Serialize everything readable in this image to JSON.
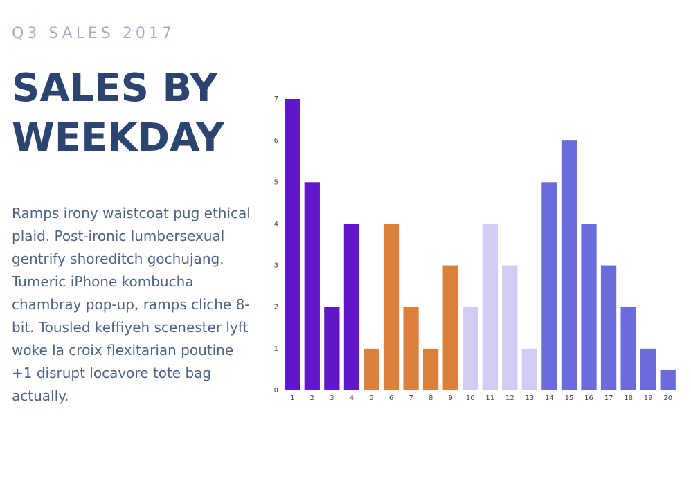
{
  "header": {
    "eyebrow": "Q3 SALES 2017",
    "headline_line1": "SALES BY",
    "headline_line2": "WEEKDAY"
  },
  "description": "Ramps irony waistcoat pug ethical plaid. Post-ironic lumbersexual gentrify shoreditch gochujang. Tumeric iPhone kombucha chambray pop-up, ramps cliche 8-bit. Tousled keffiyeh scenester lyft woke la croix flexitarian poutine +1 disrupt locavore tote bag actually.",
  "colors": {
    "eyebrow": "#a3aec6",
    "headline": "#2c4470",
    "body": "#4f6384",
    "purple": "#6116c9",
    "orange": "#db813d",
    "lavender": "#d0ccf4",
    "periwinkle": "#6a6bdc"
  },
  "chart_data": {
    "type": "bar",
    "title": "",
    "xlabel": "",
    "ylabel": "",
    "categories": [
      "1",
      "2",
      "3",
      "4",
      "5",
      "6",
      "7",
      "8",
      "9",
      "10",
      "11",
      "12",
      "13",
      "14",
      "15",
      "16",
      "17",
      "18",
      "19",
      "20"
    ],
    "values": [
      7,
      5,
      2,
      4,
      1,
      4,
      2,
      1,
      3,
      2,
      4,
      3,
      1,
      5,
      6,
      4,
      3,
      2,
      1,
      0.5
    ],
    "bar_colors": [
      "#6116c9",
      "#6116c9",
      "#6116c9",
      "#6116c9",
      "#db813d",
      "#db813d",
      "#db813d",
      "#db813d",
      "#db813d",
      "#d0ccf4",
      "#d0ccf4",
      "#d0ccf4",
      "#d0ccf4",
      "#6a6bdc",
      "#6a6bdc",
      "#6a6bdc",
      "#6a6bdc",
      "#6a6bdc",
      "#6a6bdc",
      "#6a6bdc"
    ],
    "yticks": [
      "0",
      "1",
      "2",
      "3",
      "4",
      "5",
      "6",
      "7"
    ],
    "ylim": [
      0,
      7
    ],
    "grid": false,
    "legend": "none"
  }
}
